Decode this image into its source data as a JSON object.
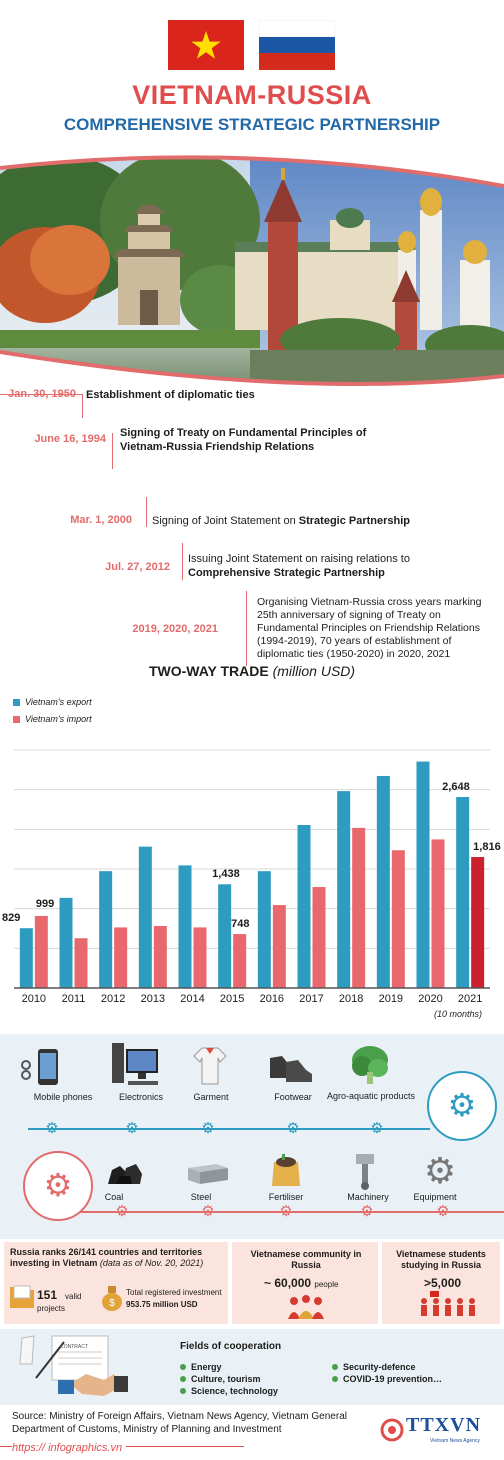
{
  "header": {
    "title": "VIETNAM-RUSSIA",
    "subtitle": "COMPREHENSIVE STRATEGIC PARTNERSHIP"
  },
  "timeline": [
    {
      "date": "Jan. 30, 1950",
      "text_plain": "",
      "text_bold": "Establishment of diplomatic ties"
    },
    {
      "date": "June 16, 1994",
      "text_plain": "",
      "text_bold": "Signing of Treaty on Fundamental Principles of Vietnam-Russia Friendship Relations"
    },
    {
      "date": "Mar. 1, 2000",
      "text_plain": "Signing of Joint Statement on ",
      "text_bold": "Strategic Partnership"
    },
    {
      "date": "Jul. 27, 2012",
      "text_plain": "Issuing Joint Statement on raising relations to ",
      "text_bold": "Comprehensive Strategic Partnership"
    },
    {
      "date": "2019, 2020, 2021",
      "text_plain": "Organising Vietnam-Russia cross years marking 25th anniversary of signing of Treaty on Fundamental Principles on Friendship Relations (1994-2019), 70 years of establishment of diplomatic ties (1950-2020) in 2020, 2021",
      "text_bold": ""
    }
  ],
  "chart_data": {
    "type": "bar",
    "title": "TWO-WAY TRADE",
    "title_unit": "(million USD)",
    "categories": [
      "2010",
      "2011",
      "2012",
      "2013",
      "2014",
      "2015",
      "2016",
      "2017",
      "2018",
      "2019",
      "2020",
      "2021"
    ],
    "category_note": "(10 months)",
    "series": [
      {
        "name": "Vietnam's export",
        "color": "#2e9cc1",
        "values": [
          829,
          1250,
          1620,
          1960,
          1700,
          1438,
          1620,
          2260,
          2730,
          2940,
          3140,
          2648
        ]
      },
      {
        "name": "Vietnam's import",
        "color": "#e9686d",
        "values": [
          999,
          690,
          840,
          860,
          840,
          748,
          1150,
          1400,
          2220,
          1910,
          2060,
          1816
        ]
      }
    ],
    "data_labels": [
      {
        "series": 1,
        "index": 0,
        "text": "999"
      },
      {
        "series": 0,
        "index": 0,
        "text": "829"
      },
      {
        "series": 0,
        "index": 5,
        "text": "1,438"
      },
      {
        "series": 1,
        "index": 5,
        "text": "748"
      },
      {
        "series": 0,
        "index": 11,
        "text": "2,648"
      },
      {
        "series": 1,
        "index": 11,
        "text": "1,816"
      }
    ],
    "ylim": [
      0,
      3300
    ],
    "grid": true
  },
  "exports": {
    "items": [
      "Mobile phones",
      "Electronics",
      "Garment",
      "Footwear",
      "Agro-aquatic products"
    ],
    "icons": [
      "phone-icon",
      "computer-icon",
      "shirt-icon",
      "shoes-icon",
      "vegetable-icon"
    ]
  },
  "imports": {
    "items": [
      "Coal",
      "Steel",
      "Fertiliser",
      "Machinery",
      "Equipment"
    ],
    "icons": [
      "coal-icon",
      "steel-icon",
      "fertiliser-icon",
      "machinery-icon",
      "equipment-icon"
    ]
  },
  "stats": {
    "investment_heading": "Russia ranks 26/141 countries and territories investing in Vietnam",
    "investment_note": "(data as of Nov. 20, 2021)",
    "projects_value": "151",
    "projects_label_1": "valid",
    "projects_label_2": "projects",
    "capital_label": "Total registered investment",
    "capital_value": "953.75 million USD",
    "community_heading": "Vietnamese community in Russia",
    "community_value": "~ 60,000",
    "community_unit": "people",
    "students_heading": "Vietnamese students studying in Russia",
    "students_value": ">5,000"
  },
  "cooperation": {
    "heading": "Fields of cooperation",
    "col1": [
      "Energy",
      "Culture, tourism",
      "Science, technology"
    ],
    "col2": [
      "Security-defence",
      "COVID-19 prevention…"
    ],
    "contract_label": "CONTRACT"
  },
  "footer": {
    "source": "Source: Ministry of Foreign Affairs, Vietnam News Agency, Vietnam General Department of Customs, Ministry of Planning and Investment",
    "url": "https:// infographics.vn",
    "logo": "TTXVN",
    "logo_sub": "Vietnam News Agency"
  },
  "colors": {
    "red": "#e04d4d",
    "blue": "#2369a8",
    "export": "#2e9cc1",
    "import": "#e9686d",
    "gear_blue": "#2e9cc1",
    "gear_red": "#e26b6b"
  }
}
